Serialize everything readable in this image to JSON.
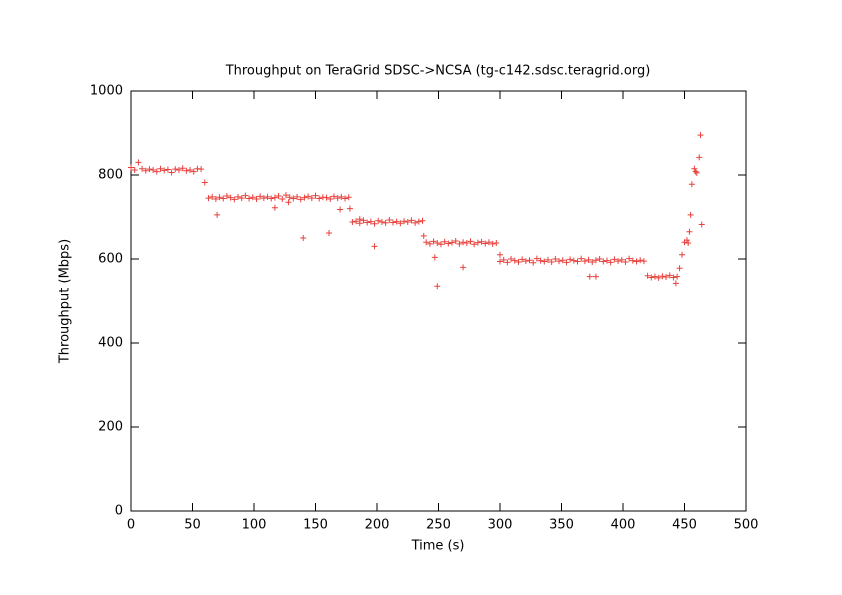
{
  "chart_data": {
    "type": "scatter",
    "title": "Throughput on TeraGrid SDSC->NCSA (tg-c142.sdsc.teragrid.org)",
    "xlabel": "Time (s)",
    "ylabel": "Throughput (Mbps)",
    "color": "#e8413c",
    "xlim": [
      0,
      500
    ],
    "ylim": [
      0,
      1000
    ],
    "xticks": [
      0,
      50,
      100,
      150,
      200,
      250,
      300,
      350,
      400,
      450,
      500
    ],
    "yticks": [
      0,
      200,
      400,
      600,
      800,
      1000
    ],
    "x": [
      0,
      3,
      6,
      9,
      12,
      15,
      18,
      21,
      24,
      27,
      30,
      33,
      36,
      39,
      42,
      45,
      48,
      51,
      54,
      57,
      60,
      63,
      66,
      69,
      72,
      75,
      78,
      81,
      84,
      87,
      90,
      93,
      96,
      99,
      102,
      105,
      108,
      111,
      114,
      117,
      120,
      123,
      126,
      129,
      132,
      135,
      138,
      141,
      144,
      147,
      150,
      153,
      156,
      159,
      162,
      165,
      168,
      171,
      174,
      177,
      70,
      117,
      128,
      140,
      161,
      170,
      178,
      180,
      183,
      186,
      189,
      192,
      195,
      198,
      201,
      204,
      207,
      210,
      213,
      216,
      219,
      222,
      225,
      228,
      231,
      234,
      237,
      198,
      238,
      186,
      240,
      243,
      246,
      249,
      252,
      255,
      258,
      261,
      264,
      267,
      270,
      273,
      276,
      279,
      282,
      285,
      288,
      291,
      294,
      297,
      247,
      249,
      270,
      300,
      303,
      306,
      309,
      312,
      315,
      318,
      321,
      324,
      327,
      330,
      333,
      336,
      339,
      342,
      345,
      348,
      351,
      354,
      357,
      360,
      363,
      366,
      369,
      372,
      375,
      378,
      381,
      384,
      387,
      390,
      393,
      396,
      399,
      402,
      405,
      408,
      411,
      414,
      417,
      300,
      373,
      378,
      420,
      423,
      426,
      429,
      432,
      435,
      438,
      441,
      444,
      443,
      446,
      448,
      450,
      452,
      453,
      454,
      455,
      456,
      458,
      459,
      460,
      462,
      463,
      464
    ],
    "values": [
      818,
      812,
      830,
      815,
      810,
      814,
      812,
      808,
      815,
      811,
      813,
      806,
      814,
      812,
      816,
      810,
      812,
      808,
      815,
      814,
      782,
      745,
      748,
      743,
      747,
      744,
      750,
      746,
      742,
      748,
      745,
      751,
      744,
      747,
      743,
      749,
      745,
      748,
      744,
      746,
      750,
      743,
      752,
      747,
      744,
      748,
      742,
      746,
      749,
      745,
      751,
      744,
      747,
      746,
      743,
      749,
      745,
      748,
      744,
      747,
      705,
      722,
      735,
      650,
      662,
      718,
      720,
      688,
      690,
      685,
      692,
      687,
      689,
      684,
      691,
      688,
      686,
      693,
      687,
      689,
      685,
      690,
      688,
      692,
      686,
      689,
      691,
      630,
      655,
      695,
      640,
      636,
      642,
      638,
      635,
      641,
      637,
      639,
      643,
      636,
      640,
      638,
      642,
      635,
      639,
      641,
      637,
      640,
      636,
      638,
      604,
      535,
      580,
      594,
      598,
      592,
      600,
      596,
      593,
      599,
      595,
      597,
      591,
      601,
      596,
      594,
      598,
      593,
      600,
      595,
      597,
      592,
      599,
      596,
      594,
      601,
      595,
      598,
      593,
      597,
      600,
      594,
      596,
      592,
      599,
      595,
      598,
      593,
      601,
      596,
      594,
      597,
      595,
      610,
      558,
      558,
      560,
      556,
      558,
      555,
      559,
      557,
      561,
      556,
      558,
      542,
      578,
      610,
      640,
      645,
      638,
      665,
      705,
      778,
      815,
      808,
      805,
      842,
      895,
      682
    ]
  }
}
